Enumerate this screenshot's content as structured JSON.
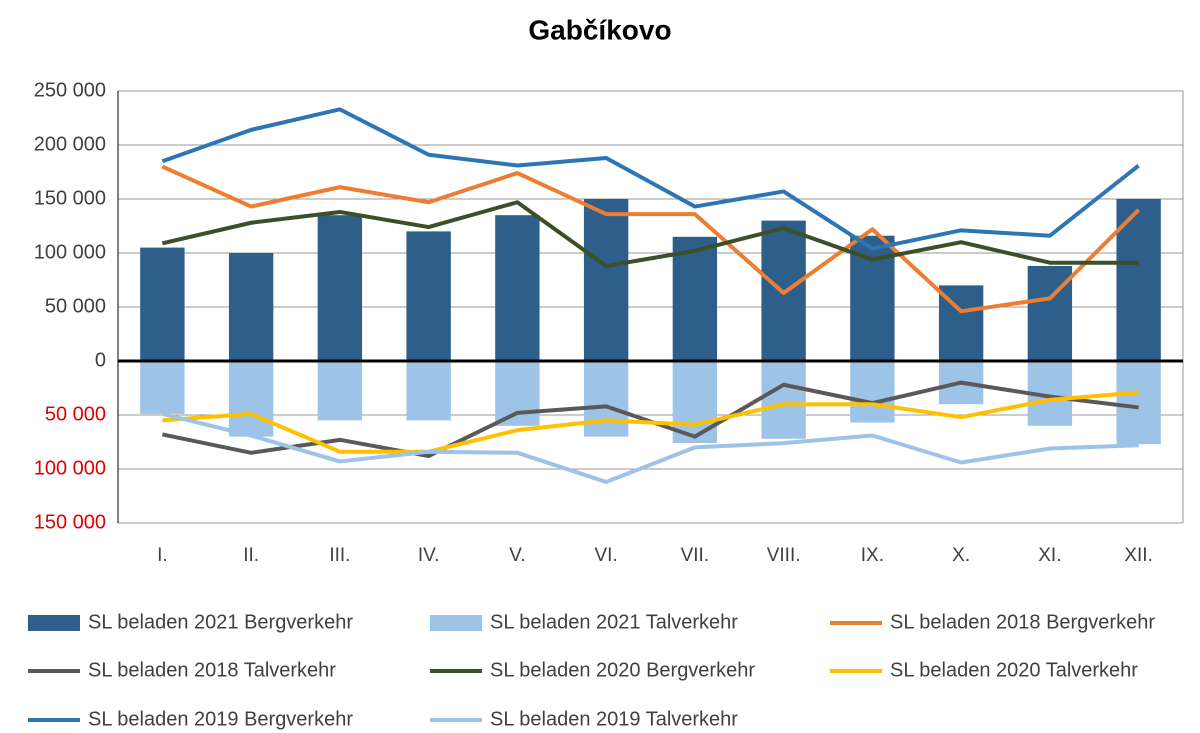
{
  "chart_data": {
    "type": "bar",
    "title": "Gabčíkovo",
    "categories": [
      "I.",
      "II.",
      "III.",
      "IV.",
      "V.",
      "VI.",
      "VII.",
      "VIII.",
      "IX.",
      "X.",
      "XI.",
      "XII."
    ],
    "ylim": [
      -150000,
      250000
    ],
    "yticks": [
      {
        "value": -150000,
        "label": "150 000"
      },
      {
        "value": -100000,
        "label": "100 000"
      },
      {
        "value": -50000,
        "label": "50 000"
      },
      0,
      {
        "value": 50000,
        "label": "50 000"
      },
      {
        "value": 100000,
        "label": "100 000"
      },
      {
        "value": 150000,
        "label": "150 000"
      },
      {
        "value": 200000,
        "label": "200 000"
      },
      {
        "value": 250000,
        "label": "250 000"
      }
    ],
    "negative_tick_color": "#e00000",
    "grid": true,
    "series": [
      {
        "name": "SL beladen 2021 Bergverkehr",
        "type": "bar",
        "color": "#2e5f8a",
        "values": [
          105000,
          100000,
          135000,
          120000,
          135000,
          150000,
          115000,
          130000,
          116000,
          70000,
          88000,
          150000
        ]
      },
      {
        "name": "SL beladen 2021 Talverkehr",
        "type": "bar",
        "color": "#9dc3e6",
        "values": [
          -49000,
          -70000,
          -55000,
          -55000,
          -60000,
          -70000,
          -76000,
          -72000,
          -57000,
          -40000,
          -60000,
          -77000
        ]
      },
      {
        "name": "SL beladen 2018 Bergverkehr",
        "type": "line",
        "color": "#ed7d31",
        "values": [
          180000,
          143000,
          161000,
          147000,
          174000,
          136000,
          136000,
          63000,
          122000,
          46000,
          58000,
          140000
        ]
      },
      {
        "name": "SL beladen 2018 Talverkehr",
        "type": "line",
        "color": "#595959",
        "values": [
          -68000,
          -85000,
          -73000,
          -88000,
          -48000,
          -42000,
          -70000,
          -22000,
          -39000,
          -20000,
          -33000,
          -43000
        ]
      },
      {
        "name": "SL beladen 2020 Bergverkehr",
        "type": "line",
        "color": "#3b4f28",
        "values": [
          109000,
          128000,
          138000,
          124000,
          147000,
          88000,
          102000,
          123000,
          94000,
          110000,
          91000,
          91000
        ]
      },
      {
        "name": "SL beladen 2020 Talverkehr",
        "type": "line",
        "color": "#ffc000",
        "values": [
          -55000,
          -49000,
          -84000,
          -84000,
          -64000,
          -55000,
          -59000,
          -40000,
          -40000,
          -52000,
          -36000,
          -29000
        ]
      },
      {
        "name": "SL beladen 2019 Bergverkehr",
        "type": "line",
        "color": "#2e75b6",
        "values": [
          185000,
          214000,
          233000,
          191000,
          181000,
          188000,
          143000,
          157000,
          104000,
          121000,
          116000,
          181000
        ]
      },
      {
        "name": "SL beladen 2019 Talverkehr",
        "type": "line",
        "color": "#9dc3e6",
        "values": [
          -49000,
          -69000,
          -93000,
          -84000,
          -85000,
          -112000,
          -80000,
          -76000,
          -69000,
          -94000,
          -81000,
          -78000
        ]
      }
    ]
  }
}
